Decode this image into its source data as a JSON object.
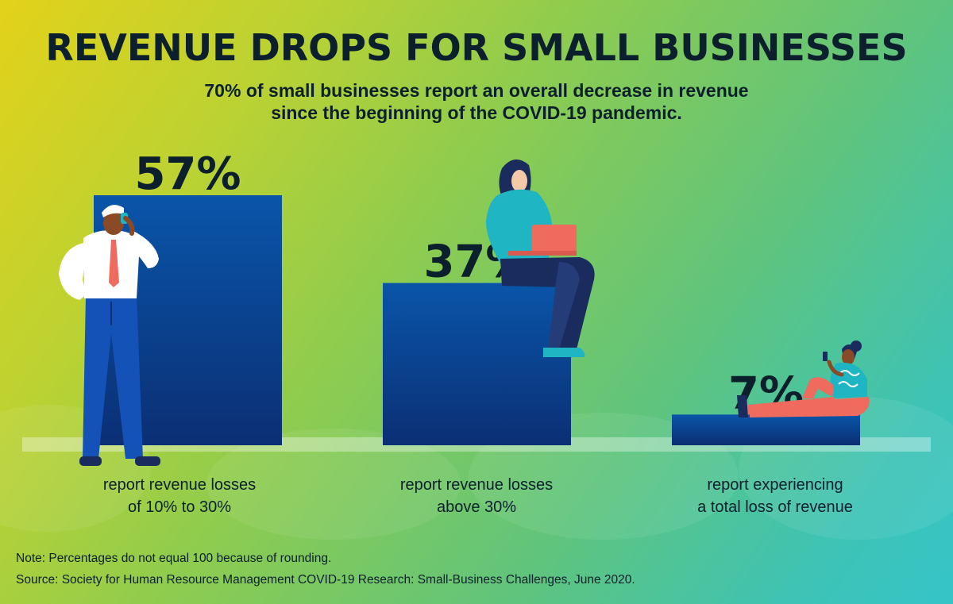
{
  "header": {
    "title": "REVENUE DROPS FOR SMALL BUSINESSES",
    "subtitle_line1": "70% of small businesses report an overall decrease in revenue",
    "subtitle_line2": "since the beginning of the COVID-19 pandemic."
  },
  "chart_data": {
    "type": "bar",
    "categories": [
      "report revenue losses of 10% to 30%",
      "report revenue losses above 30%",
      "report experiencing a total loss of revenue"
    ],
    "values": [
      57,
      37,
      7
    ],
    "data_labels": [
      "57%",
      "37%",
      "7%"
    ],
    "category_label_lines": [
      [
        "report revenue losses",
        "of 10% to 30%"
      ],
      [
        "report revenue losses",
        "above 30%"
      ],
      [
        "report experiencing",
        "a total loss of revenue"
      ]
    ],
    "ylim": [
      0,
      57
    ],
    "grid": false,
    "bar_color_top": "#0a55a9",
    "bar_color_bottom": "#0b2f74"
  },
  "footer": {
    "note": "Note: Percentages do not equal 100 because of rounding.",
    "source": "Source: Society for Human Resource Management COVID-19 Research: Small-Business Challenges, June 2020."
  },
  "colors": {
    "text": "#0c1f2c",
    "shirt_teal": "#1fb5c2",
    "laptop": "#ee6b5e",
    "tie": "#ee6b5e",
    "pants_blue": "#1552b8",
    "pants_navy": "#1a2c5e"
  },
  "illustrations": [
    "businessman-on-phone-icon",
    "woman-with-laptop-icon",
    "woman-reclining-with-phone-icon"
  ]
}
